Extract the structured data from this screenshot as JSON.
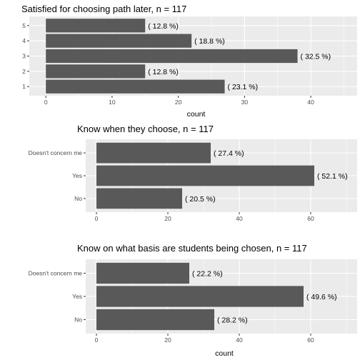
{
  "chart_data": [
    {
      "type": "bar",
      "orientation": "horizontal",
      "title": "Satisfied for choosing path later, n = 117",
      "xlabel": "count",
      "ylabel": "",
      "categories": [
        "5",
        "4",
        "3",
        "2",
        "1"
      ],
      "values": [
        15,
        22,
        38,
        15,
        27
      ],
      "labels": [
        "( 12.8 %)",
        "( 18.8 %)",
        "( 32.5 %)",
        "( 12.8 %)",
        "( 23.1 %)"
      ],
      "xlim": [
        -2.5,
        47
      ],
      "xticks": [
        0,
        10,
        20,
        30,
        40
      ],
      "bar_color": "#595959",
      "panel_color": "#ebebeb",
      "grid": true
    },
    {
      "type": "bar",
      "orientation": "horizontal",
      "title": "Know when they choose, n = 117",
      "xlabel": "",
      "ylabel": "",
      "categories": [
        "Doesn't concern me",
        "Yes",
        "No"
      ],
      "values": [
        32,
        61,
        24
      ],
      "labels": [
        "( 27.4 %)",
        "( 52.1 %)",
        "( 20.5 %)"
      ],
      "xlim": [
        -3,
        73
      ],
      "xticks": [
        0,
        20,
        40,
        60
      ],
      "bar_color": "#595959",
      "panel_color": "#ebebeb",
      "grid": true
    },
    {
      "type": "bar",
      "orientation": "horizontal",
      "title": "Know on what basis are students being chosen, n = 117",
      "xlabel": "count",
      "ylabel": "",
      "categories": [
        "Doesn't concern me",
        "Yes",
        "No"
      ],
      "values": [
        26,
        58,
        33
      ],
      "labels": [
        "( 22.2 %)",
        "( 49.6 %)",
        "( 28.2 %)"
      ],
      "xlim": [
        -3,
        73
      ],
      "xticks": [
        0,
        20,
        40,
        60
      ],
      "bar_color": "#595959",
      "panel_color": "#ebebeb",
      "grid": true
    }
  ]
}
